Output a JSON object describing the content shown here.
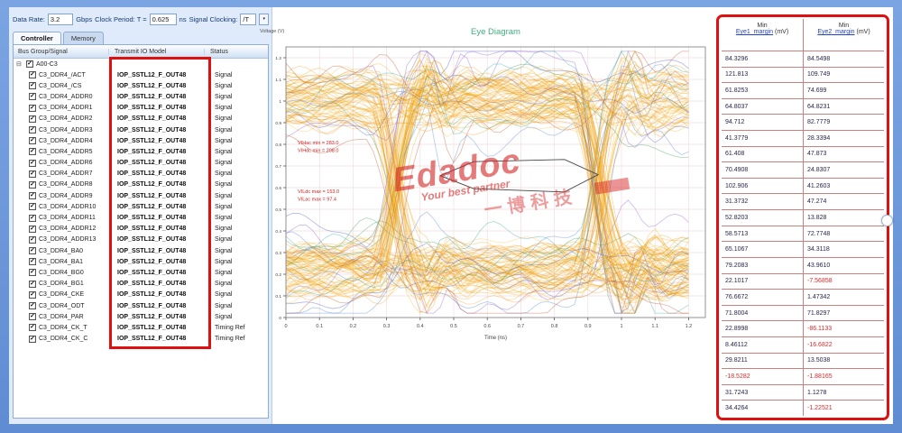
{
  "toolbar": {
    "data_rate_label": "Data Rate:",
    "data_rate_value": "3.2",
    "data_rate_unit": "Gbps",
    "clock_period_label": "Clock Period: T =",
    "clock_period_value": "0.625",
    "clock_period_unit": "ns",
    "signal_clocking_label": "Signal Clocking:",
    "signal_clocking_value": "/T",
    "signal_clocking_button": "▾"
  },
  "tabs": {
    "controller": "Controller",
    "memory": "Memory"
  },
  "signal_table": {
    "columns": {
      "signal": "Bus Group/Signal",
      "model": "Transmit IO Model",
      "status": "Status"
    },
    "root_label": "A00-C3",
    "io_model": "IOP_SSTL12_F_OUT48",
    "rows": [
      {
        "name": "C3_DDR4_/ACT",
        "status": "Signal"
      },
      {
        "name": "C3_DDR4_/CS",
        "status": "Signal"
      },
      {
        "name": "C3_DDR4_ADDR0",
        "status": "Signal"
      },
      {
        "name": "C3_DDR4_ADDR1",
        "status": "Signal"
      },
      {
        "name": "C3_DDR4_ADDR2",
        "status": "Signal"
      },
      {
        "name": "C3_DDR4_ADDR3",
        "status": "Signal"
      },
      {
        "name": "C3_DDR4_ADDR4",
        "status": "Signal"
      },
      {
        "name": "C3_DDR4_ADDR5",
        "status": "Signal"
      },
      {
        "name": "C3_DDR4_ADDR6",
        "status": "Signal"
      },
      {
        "name": "C3_DDR4_ADDR7",
        "status": "Signal"
      },
      {
        "name": "C3_DDR4_ADDR8",
        "status": "Signal"
      },
      {
        "name": "C3_DDR4_ADDR9",
        "status": "Signal"
      },
      {
        "name": "C3_DDR4_ADDR10",
        "status": "Signal"
      },
      {
        "name": "C3_DDR4_ADDR11",
        "status": "Signal"
      },
      {
        "name": "C3_DDR4_ADDR12",
        "status": "Signal"
      },
      {
        "name": "C3_DDR4_ADDR13",
        "status": "Signal"
      },
      {
        "name": "C3_DDR4_BA0",
        "status": "Signal"
      },
      {
        "name": "C3_DDR4_BA1",
        "status": "Signal"
      },
      {
        "name": "C3_DDR4_BG0",
        "status": "Signal"
      },
      {
        "name": "C3_DDR4_BG1",
        "status": "Signal"
      },
      {
        "name": "C3_DDR4_CKE",
        "status": "Signal"
      },
      {
        "name": "C3_DDR4_ODT",
        "status": "Signal"
      },
      {
        "name": "C3_DDR4_PAR",
        "status": "Signal"
      },
      {
        "name": "C3_DDR4_CK_T",
        "status": "Timing Ref"
      },
      {
        "name": "C3_DDR4_CK_C",
        "status": "Timing Ref"
      }
    ]
  },
  "results_table": {
    "col1": {
      "title": "Min",
      "link": "Eye1_margin",
      "unit": "(mV)"
    },
    "col2": {
      "title": "Min",
      "link": "Eye2_margin",
      "unit": "(mV)"
    },
    "rows": [
      {
        "v1": "84.3296",
        "r1": false,
        "v2": "84.5498",
        "r2": false
      },
      {
        "v1": "121.813",
        "r1": false,
        "v2": "109.749",
        "r2": false
      },
      {
        "v1": "61.8253",
        "r1": false,
        "v2": "74.699",
        "r2": false
      },
      {
        "v1": "64.8037",
        "r1": false,
        "v2": "64.8231",
        "r2": false
      },
      {
        "v1": "94.712",
        "r1": false,
        "v2": "82.7779",
        "r2": false
      },
      {
        "v1": "41.3779",
        "r1": false,
        "v2": "28.3394",
        "r2": false
      },
      {
        "v1": "61.408",
        "r1": false,
        "v2": "47.873",
        "r2": false
      },
      {
        "v1": "70.4908",
        "r1": false,
        "v2": "24.8307",
        "r2": false
      },
      {
        "v1": "102.906",
        "r1": false,
        "v2": "41.2603",
        "r2": false
      },
      {
        "v1": "31.3732",
        "r1": false,
        "v2": "47.274",
        "r2": false
      },
      {
        "v1": "52.8203",
        "r1": false,
        "v2": "13.828",
        "r2": false
      },
      {
        "v1": "58.5713",
        "r1": false,
        "v2": "72.7748",
        "r2": false
      },
      {
        "v1": "65.1067",
        "r1": false,
        "v2": "34.3118",
        "r2": false
      },
      {
        "v1": "79.2083",
        "r1": false,
        "v2": "43.9610",
        "r2": false
      },
      {
        "v1": "22.1017",
        "r1": false,
        "v2": "-7.56858",
        "r2": true
      },
      {
        "v1": "76.6672",
        "r1": false,
        "v2": "1.47342",
        "r2": false
      },
      {
        "v1": "71.8004",
        "r1": false,
        "v2": "71.8297",
        "r2": false
      },
      {
        "v1": "22.8998",
        "r1": false,
        "v2": "-86.1133",
        "r2": true
      },
      {
        "v1": "8.46112",
        "r1": false,
        "v2": "-16.6822",
        "r2": true
      },
      {
        "v1": "29.8211",
        "r1": false,
        "v2": "13.5038",
        "r2": false
      },
      {
        "v1": "-18.5282",
        "r1": true,
        "v2": "-1.88165",
        "r2": true
      },
      {
        "v1": "31.7243",
        "r1": false,
        "v2": "1.1278",
        "r2": false
      },
      {
        "v1": "34.4264",
        "r1": false,
        "v2": "-1.22521",
        "r2": true
      }
    ]
  },
  "watermark": {
    "brand": "Edadoc",
    "tagline": "Your best partner",
    "cn": "一博科技"
  },
  "chart_data": {
    "type": "line",
    "subtype": "eye_diagram",
    "title": "Eye Diagram",
    "xlabel": "Time (ns)",
    "ylabel": "Voltage (V)",
    "xlim": [
      0,
      1.25
    ],
    "ylim": [
      0,
      1.25
    ],
    "x_ticks": [
      0,
      0.1,
      0.2,
      0.3,
      0.4,
      0.5,
      0.6,
      0.7,
      0.8,
      0.9,
      1,
      1.1,
      1.2
    ],
    "y_ticks": [
      0,
      0.1,
      0.2,
      0.3,
      0.4,
      0.5,
      0.6,
      0.7,
      0.8,
      0.9,
      1,
      1.1,
      1.2
    ],
    "grid": true,
    "legend": false,
    "levels": {
      "high": 1.0,
      "low": 0.22,
      "crossings": [
        0.33,
        0.93
      ]
    },
    "trace_count": 150,
    "colors": {
      "primary": [
        "#f4a503",
        "#e99a00",
        "#fdb92a",
        "#ef8e06"
      ],
      "outliers": [
        "#4d7fd0",
        "#3d9a55",
        "#8a57cc",
        "#2fa3a3",
        "#b7502e",
        "#4455bb"
      ]
    },
    "mask": {
      "points": [
        [
          0.46,
          0.655
        ],
        [
          0.56,
          0.72
        ],
        [
          0.83,
          0.73
        ],
        [
          0.93,
          0.66
        ],
        [
          0.83,
          0.58
        ],
        [
          0.56,
          0.595
        ]
      ],
      "color": "#444444"
    },
    "annotations": [
      {
        "text": "VIHac min = 283.0",
        "x": 0.035,
        "y": 0.8,
        "color": "#cc2222"
      },
      {
        "text": "VIHdc min = 208.0",
        "x": 0.035,
        "y": 0.765,
        "color": "#cc2222"
      },
      {
        "text": "VILdc max = 153.0",
        "x": 0.035,
        "y": 0.575,
        "color": "#cc2222"
      },
      {
        "text": "VILac max = 97.4",
        "x": 0.035,
        "y": 0.54,
        "color": "#cc2222"
      }
    ]
  }
}
